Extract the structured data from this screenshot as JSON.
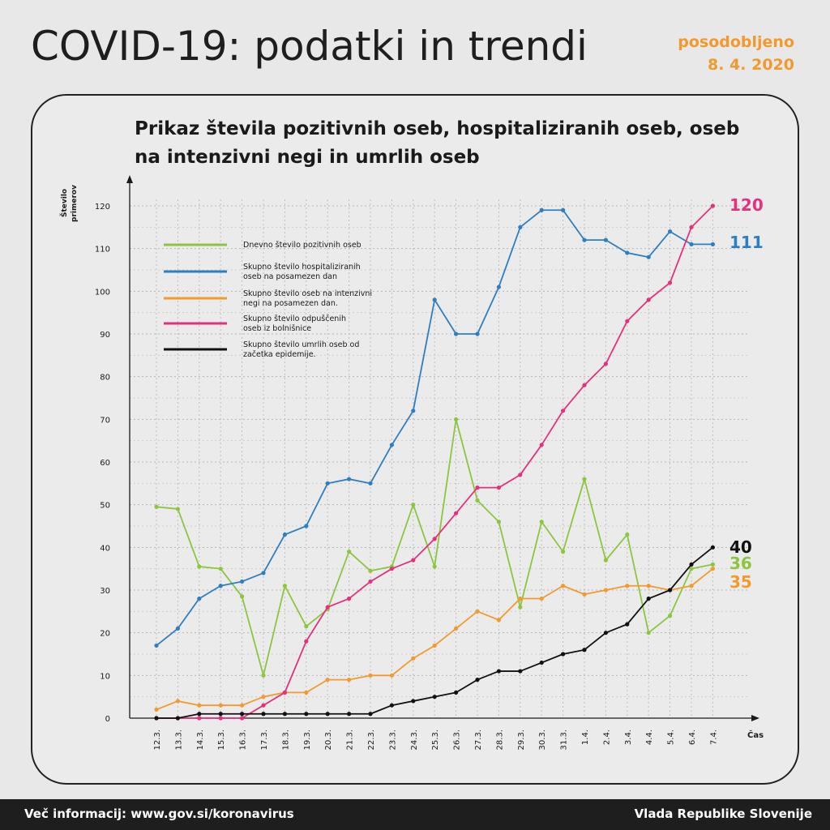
{
  "header": {
    "title": "COVID-19: podatki in trendi",
    "updated_label": "posodobljeno",
    "updated_date": "8. 4. 2020"
  },
  "footer": {
    "info": "Več informacij: www.gov.si/koronavirus",
    "org": "Vlada Republike Slovenije"
  },
  "colors": {
    "green": "#8cc63f",
    "blue": "#2d7fc1",
    "orange": "#f29a2e",
    "pink": "#e5307e",
    "black": "#111111"
  },
  "chart_data": {
    "type": "line",
    "title": "Prikaz števila pozitivnih oseb, hospitaliziranih oseb, oseb na intenzivni negi in umrlih oseb",
    "ylabel_line1": "Število",
    "ylabel_line2": "primerov",
    "xlabel": "Čas",
    "ylim": [
      0,
      120
    ],
    "yticks": [
      0,
      10,
      20,
      30,
      40,
      50,
      60,
      70,
      80,
      90,
      100,
      110,
      120
    ],
    "grid": true,
    "legend_position": "top-left",
    "categories": [
      "12.3.",
      "13.3.",
      "14.3.",
      "15.3.",
      "16.3.",
      "17.3.",
      "18.3.",
      "19.3.",
      "20.3.",
      "21.3.",
      "22.3.",
      "23.3.",
      "24.3.",
      "25.3.",
      "26.3.",
      "27.3.",
      "28.3.",
      "29.3.",
      "30.3.",
      "31.3.",
      "1.4.",
      "2.4.",
      "3.4.",
      "4.4.",
      "5.4.",
      "6.4.",
      "7.4."
    ],
    "series": [
      {
        "name": "Dnevno število pozitivnih oseb",
        "legend_lines": [
          "Dnevno število pozitivnih oseb"
        ],
        "color": "#8cc63f",
        "values": [
          49.5,
          49,
          35.5,
          35,
          28.5,
          10,
          31,
          21.5,
          25.5,
          39,
          34.5,
          35.5,
          50,
          35.5,
          70,
          51,
          46,
          26,
          46,
          39,
          56,
          37,
          43,
          20,
          24,
          35,
          36
        ],
        "end_label": "36"
      },
      {
        "name": "Skupno število hospitaliziranih oseb na posamezen dan",
        "legend_lines": [
          "Skupno število hospitaliziranih",
          "oseb na posamezen dan"
        ],
        "color": "#2d7fc1",
        "values": [
          17,
          21,
          28,
          31,
          32,
          34,
          43,
          45,
          55,
          56,
          55,
          64,
          72,
          98,
          90,
          90,
          101,
          115,
          119,
          119,
          112,
          112,
          109,
          108,
          114,
          111,
          111
        ],
        "end_label": "111"
      },
      {
        "name": "Skupno število oseb na intenzivni negi na posamezen dan.",
        "legend_lines": [
          "Skupno število oseb na intenzivni",
          "negi na posamezen dan."
        ],
        "color": "#f29a2e",
        "values": [
          2,
          4,
          3,
          3,
          3,
          5,
          6,
          6,
          9,
          9,
          10,
          10,
          14,
          17,
          21,
          25,
          23,
          28,
          28,
          31,
          29,
          30,
          31,
          31,
          30,
          31,
          35
        ],
        "end_label": "35"
      },
      {
        "name": "Skupno število odpuščenih oseb iz bolnišnice",
        "legend_lines": [
          "Skupno število odpuščenih",
          "oseb iz bolnišnice"
        ],
        "color": "#e5307e",
        "values": [
          0,
          0,
          0,
          0,
          0,
          3,
          6,
          18,
          26,
          28,
          32,
          35,
          37,
          42,
          48,
          54,
          54,
          57,
          64,
          72,
          78,
          83,
          93,
          98,
          102,
          115,
          120
        ],
        "end_label": "120"
      },
      {
        "name": "Skupno število umrlih oseb od začetka epidemije.",
        "legend_lines": [
          "Skupno število umrlih oseb od",
          "začetka epidemije."
        ],
        "color": "#111111",
        "values": [
          0,
          0,
          1,
          1,
          1,
          1,
          1,
          1,
          1,
          1,
          1,
          3,
          4,
          5,
          6,
          9,
          11,
          11,
          13,
          15,
          16,
          20,
          22,
          28,
          30,
          36,
          40
        ],
        "end_label": "40"
      }
    ]
  }
}
